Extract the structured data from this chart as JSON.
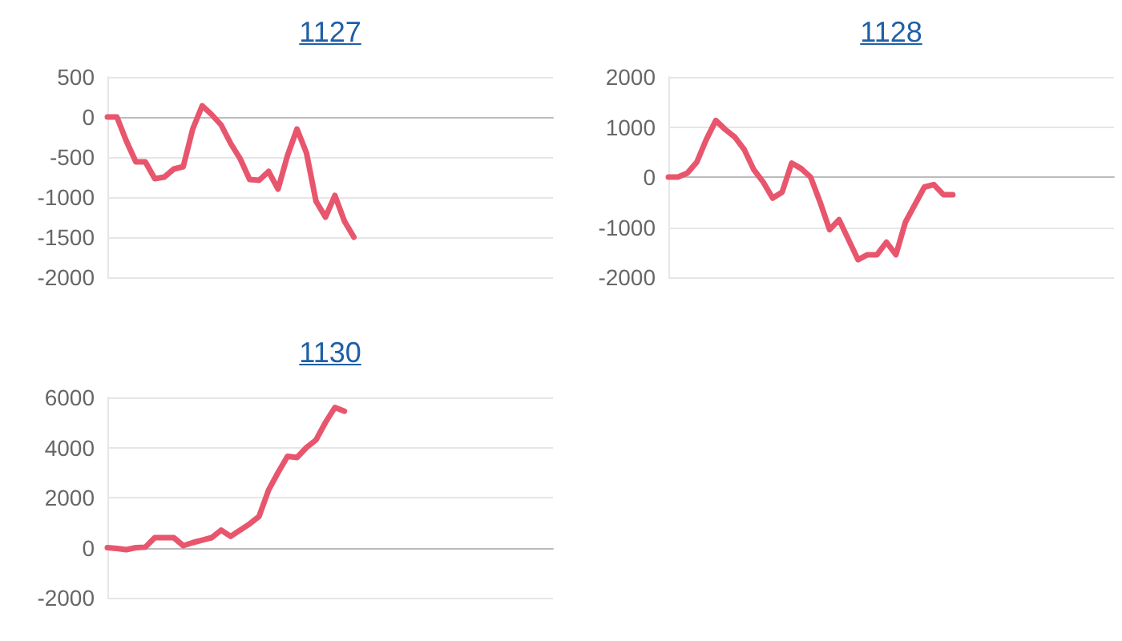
{
  "chart_data": [
    {
      "type": "line",
      "title": "1127",
      "categories": [
        null,
        null,
        null,
        null,
        null,
        null,
        null,
        null,
        null,
        null,
        null,
        null,
        null,
        null,
        null,
        null,
        null,
        null,
        null,
        null,
        null,
        null,
        null,
        null,
        null,
        null,
        null,
        null,
        null,
        null,
        null,
        null,
        null,
        null,
        null,
        null,
        null,
        null,
        null,
        null,
        null,
        null,
        null,
        null,
        null,
        null,
        null,
        null
      ],
      "color": "#e8566e",
      "values": [
        0,
        0,
        -300,
        -560,
        -560,
        -770,
        -750,
        -650,
        -620,
        -150,
        140,
        30,
        -100,
        -330,
        -520,
        -780,
        -790,
        -680,
        -900,
        -480,
        -150,
        -450,
        -1050,
        -1250,
        -980,
        -1300,
        -1500,
        null,
        null,
        null,
        null,
        null,
        null,
        null,
        null,
        null,
        null,
        null,
        null,
        null,
        null,
        null,
        null,
        null,
        null,
        null,
        null,
        null
      ],
      "ylim": [
        -2000,
        500
      ],
      "yticks": [
        -2000,
        -1500,
        -1000,
        -500,
        0,
        500
      ],
      "grid": "y",
      "tick_labels": "y",
      "line_style": "solid"
    },
    {
      "type": "line",
      "title": "1128",
      "categories": [
        null,
        null,
        null,
        null,
        null,
        null,
        null,
        null,
        null,
        null,
        null,
        null,
        null,
        null,
        null,
        null,
        null,
        null,
        null,
        null,
        null,
        null,
        null,
        null,
        null,
        null,
        null,
        null,
        null,
        null,
        null,
        null,
        null,
        null,
        null,
        null,
        null,
        null,
        null,
        null,
        null,
        null,
        null,
        null,
        null,
        null,
        null,
        null
      ],
      "color": "#e8566e",
      "values": [
        0,
        0,
        80,
        300,
        750,
        1130,
        950,
        800,
        550,
        150,
        -100,
        -420,
        -300,
        280,
        170,
        0,
        -500,
        -1050,
        -850,
        -1250,
        -1650,
        -1550,
        -1550,
        -1300,
        -1550,
        -900,
        -550,
        -200,
        -150,
        -350,
        -350,
        null,
        null,
        null,
        null,
        null,
        null,
        null,
        null,
        null,
        null,
        null,
        null,
        null,
        null,
        null,
        null,
        null
      ],
      "ylim": [
        -2000,
        2000
      ],
      "yticks": [
        -2000,
        -1000,
        0,
        1000,
        2000
      ],
      "grid": "y",
      "tick_labels": "y",
      "line_style": "solid"
    },
    {
      "type": "line",
      "title": "1130",
      "categories": [
        null,
        null,
        null,
        null,
        null,
        null,
        null,
        null,
        null,
        null,
        null,
        null,
        null,
        null,
        null,
        null,
        null,
        null,
        null,
        null,
        null,
        null,
        null,
        null,
        null,
        null,
        null,
        null,
        null,
        null,
        null,
        null,
        null,
        null,
        null,
        null,
        null,
        null,
        null,
        null,
        null,
        null,
        null,
        null,
        null,
        null,
        null,
        null
      ],
      "color": "#e8566e",
      "values": [
        0,
        -30,
        -80,
        0,
        20,
        400,
        400,
        400,
        80,
        200,
        300,
        400,
        700,
        450,
        700,
        950,
        1250,
        2300,
        3000,
        3650,
        3600,
        4000,
        4300,
        5000,
        5600,
        5450,
        null,
        null,
        null,
        null,
        null,
        null,
        null,
        null,
        null,
        null,
        null,
        null,
        null,
        null,
        null,
        null,
        null,
        null,
        null,
        null,
        null,
        null
      ],
      "ylim": [
        -2000,
        6000
      ],
      "yticks": [
        -2000,
        0,
        2000,
        4000,
        6000
      ],
      "grid": "y",
      "tick_labels": "y",
      "line_style": "solid"
    }
  ]
}
